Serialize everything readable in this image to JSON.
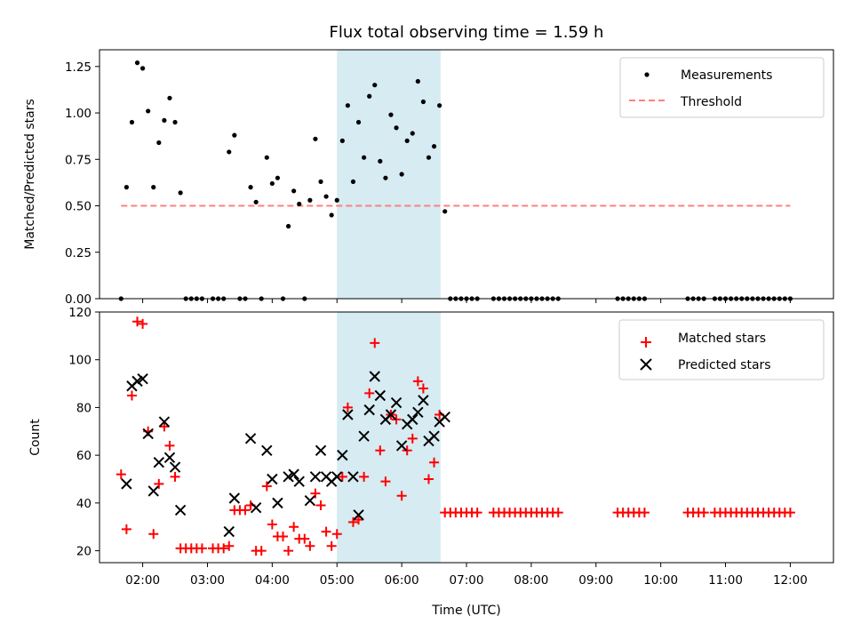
{
  "chart_data": [
    {
      "type": "scatter",
      "title": "Flux total observing time = 1.59 h",
      "xlabel": "",
      "ylabel": "Matched/Predicted stars",
      "xlim": [
        "01:20",
        "12:40"
      ],
      "ylim": [
        0,
        1.34
      ],
      "yticks": [
        0,
        0.25,
        0.5,
        0.75,
        1.0,
        1.25
      ],
      "ytick_labels": [
        "0.00",
        "0.25",
        "0.50",
        "0.75",
        "1.00",
        "1.25"
      ],
      "shaded_span": [
        "05:00",
        "06:36"
      ],
      "legend": {
        "placement": "top-right",
        "entries": [
          "Measurements",
          "Threshold"
        ]
      },
      "threshold": {
        "name": "Threshold",
        "value": 0.5,
        "x": [
          "01:40",
          "12:00"
        ],
        "color": "#ff7f7f"
      },
      "series": [
        {
          "name": "Measurements",
          "color": "#000000",
          "points": [
            [
              "01:40",
              0
            ],
            [
              "01:45",
              0.6
            ],
            [
              "01:50",
              0.95
            ],
            [
              "01:55",
              1.27
            ],
            [
              "02:00",
              1.24
            ],
            [
              "02:05",
              1.01
            ],
            [
              "02:10",
              0.6
            ],
            [
              "02:15",
              0.84
            ],
            [
              "02:20",
              0.96
            ],
            [
              "02:25",
              1.08
            ],
            [
              "02:30",
              0.95
            ],
            [
              "02:35",
              0.57
            ],
            [
              "02:40",
              0
            ],
            [
              "02:45",
              0
            ],
            [
              "02:50",
              0
            ],
            [
              "02:55",
              0
            ],
            [
              "03:05",
              0
            ],
            [
              "03:10",
              0
            ],
            [
              "03:15",
              0
            ],
            [
              "03:20",
              0.79
            ],
            [
              "03:25",
              0.88
            ],
            [
              "03:30",
              0
            ],
            [
              "03:35",
              0
            ],
            [
              "03:40",
              0.6
            ],
            [
              "03:45",
              0.52
            ],
            [
              "03:50",
              0
            ],
            [
              "03:55",
              0.76
            ],
            [
              "04:00",
              0.62
            ],
            [
              "04:05",
              0.65
            ],
            [
              "04:10",
              0
            ],
            [
              "04:15",
              0.39
            ],
            [
              "04:20",
              0.58
            ],
            [
              "04:25",
              0.51
            ],
            [
              "04:30",
              0
            ],
            [
              "04:35",
              0.53
            ],
            [
              "04:40",
              0.86
            ],
            [
              "04:45",
              0.63
            ],
            [
              "04:50",
              0.55
            ],
            [
              "04:55",
              0.45
            ],
            [
              "05:00",
              0.53
            ],
            [
              "05:05",
              0.85
            ],
            [
              "05:10",
              1.04
            ],
            [
              "05:15",
              0.63
            ],
            [
              "05:20",
              0.95
            ],
            [
              "05:25",
              0.76
            ],
            [
              "05:30",
              1.09
            ],
            [
              "05:35",
              1.15
            ],
            [
              "05:40",
              0.74
            ],
            [
              "05:45",
              0.65
            ],
            [
              "05:50",
              0.99
            ],
            [
              "05:55",
              0.92
            ],
            [
              "06:00",
              0.67
            ],
            [
              "06:05",
              0.85
            ],
            [
              "06:10",
              0.89
            ],
            [
              "06:15",
              1.17
            ],
            [
              "06:20",
              1.06
            ],
            [
              "06:25",
              0.76
            ],
            [
              "06:30",
              0.82
            ],
            [
              "06:35",
              1.04
            ],
            [
              "06:40",
              0.47
            ],
            [
              "06:45",
              0
            ],
            [
              "06:50",
              0
            ],
            [
              "06:55",
              0
            ],
            [
              "07:00",
              0
            ],
            [
              "07:05",
              0
            ],
            [
              "07:10",
              0
            ],
            [
              "07:25",
              0
            ],
            [
              "07:30",
              0
            ],
            [
              "07:35",
              0
            ],
            [
              "07:40",
              0
            ],
            [
              "07:45",
              0
            ],
            [
              "07:50",
              0
            ],
            [
              "07:55",
              0
            ],
            [
              "08:00",
              0
            ],
            [
              "08:05",
              0
            ],
            [
              "08:10",
              0
            ],
            [
              "08:15",
              0
            ],
            [
              "08:20",
              0
            ],
            [
              "08:25",
              0
            ],
            [
              "09:20",
              0
            ],
            [
              "09:25",
              0
            ],
            [
              "09:30",
              0
            ],
            [
              "09:35",
              0
            ],
            [
              "09:40",
              0
            ],
            [
              "09:45",
              0
            ],
            [
              "10:25",
              0
            ],
            [
              "10:30",
              0
            ],
            [
              "10:35",
              0
            ],
            [
              "10:40",
              0
            ],
            [
              "10:50",
              0
            ],
            [
              "10:55",
              0
            ],
            [
              "11:00",
              0
            ],
            [
              "11:05",
              0
            ],
            [
              "11:10",
              0
            ],
            [
              "11:15",
              0
            ],
            [
              "11:20",
              0
            ],
            [
              "11:25",
              0
            ],
            [
              "11:30",
              0
            ],
            [
              "11:35",
              0
            ],
            [
              "11:40",
              0
            ],
            [
              "11:45",
              0
            ],
            [
              "11:50",
              0
            ],
            [
              "11:55",
              0
            ],
            [
              "12:00",
              0
            ]
          ]
        }
      ]
    },
    {
      "type": "scatter",
      "title": "",
      "xlabel": "Time (UTC)",
      "ylabel": "Count",
      "xlim": [
        "01:20",
        "12:40"
      ],
      "xticks": [
        "02:00",
        "03:00",
        "04:00",
        "05:00",
        "06:00",
        "07:00",
        "08:00",
        "09:00",
        "10:00",
        "11:00",
        "12:00"
      ],
      "ylim": [
        15,
        120
      ],
      "yticks": [
        20,
        40,
        60,
        80,
        100,
        120
      ],
      "shaded_span": [
        "05:00",
        "06:36"
      ],
      "legend": {
        "placement": "top-right",
        "entries": [
          "Matched stars",
          "Predicted stars"
        ]
      },
      "series": [
        {
          "name": "Matched stars",
          "marker": "+",
          "color": "#ff0000",
          "points": [
            [
              "01:40",
              52
            ],
            [
              "01:45",
              29
            ],
            [
              "01:50",
              85
            ],
            [
              "01:55",
              116
            ],
            [
              "02:00",
              115
            ],
            [
              "02:05",
              70
            ],
            [
              "02:10",
              27
            ],
            [
              "02:15",
              48
            ],
            [
              "02:20",
              72
            ],
            [
              "02:25",
              64
            ],
            [
              "02:30",
              51
            ],
            [
              "02:35",
              21
            ],
            [
              "02:40",
              21
            ],
            [
              "02:45",
              21
            ],
            [
              "02:50",
              21
            ],
            [
              "02:55",
              21
            ],
            [
              "03:05",
              21
            ],
            [
              "03:10",
              21
            ],
            [
              "03:15",
              21
            ],
            [
              "03:20",
              22
            ],
            [
              "03:25",
              37
            ],
            [
              "03:30",
              37
            ],
            [
              "03:35",
              37
            ],
            [
              "03:40",
              39
            ],
            [
              "03:45",
              20
            ],
            [
              "03:50",
              20
            ],
            [
              "03:55",
              47
            ],
            [
              "04:00",
              31
            ],
            [
              "04:05",
              26
            ],
            [
              "04:10",
              26
            ],
            [
              "04:15",
              20
            ],
            [
              "04:20",
              30
            ],
            [
              "04:25",
              25
            ],
            [
              "04:30",
              25
            ],
            [
              "04:35",
              22
            ],
            [
              "04:40",
              44
            ],
            [
              "04:45",
              39
            ],
            [
              "04:50",
              28
            ],
            [
              "04:55",
              22
            ],
            [
              "05:00",
              27
            ],
            [
              "05:05",
              51
            ],
            [
              "05:10",
              80
            ],
            [
              "05:15",
              32
            ],
            [
              "05:20",
              33
            ],
            [
              "05:25",
              51
            ],
            [
              "05:30",
              86
            ],
            [
              "05:35",
              107
            ],
            [
              "05:40",
              62
            ],
            [
              "05:45",
              49
            ],
            [
              "05:50",
              77
            ],
            [
              "05:55",
              75
            ],
            [
              "06:00",
              43
            ],
            [
              "06:05",
              62
            ],
            [
              "06:10",
              67
            ],
            [
              "06:15",
              91
            ],
            [
              "06:20",
              88
            ],
            [
              "06:25",
              50
            ],
            [
              "06:30",
              57
            ],
            [
              "06:35",
              77
            ],
            [
              "06:40",
              36
            ],
            [
              "06:45",
              36
            ],
            [
              "06:50",
              36
            ],
            [
              "06:55",
              36
            ],
            [
              "07:00",
              36
            ],
            [
              "07:05",
              36
            ],
            [
              "07:10",
              36
            ],
            [
              "07:25",
              36
            ],
            [
              "07:30",
              36
            ],
            [
              "07:35",
              36
            ],
            [
              "07:40",
              36
            ],
            [
              "07:45",
              36
            ],
            [
              "07:50",
              36
            ],
            [
              "07:55",
              36
            ],
            [
              "08:00",
              36
            ],
            [
              "08:05",
              36
            ],
            [
              "08:10",
              36
            ],
            [
              "08:15",
              36
            ],
            [
              "08:20",
              36
            ],
            [
              "08:25",
              36
            ],
            [
              "09:20",
              36
            ],
            [
              "09:25",
              36
            ],
            [
              "09:30",
              36
            ],
            [
              "09:35",
              36
            ],
            [
              "09:40",
              36
            ],
            [
              "09:45",
              36
            ],
            [
              "10:25",
              36
            ],
            [
              "10:30",
              36
            ],
            [
              "10:35",
              36
            ],
            [
              "10:40",
              36
            ],
            [
              "10:50",
              36
            ],
            [
              "10:55",
              36
            ],
            [
              "11:00",
              36
            ],
            [
              "11:05",
              36
            ],
            [
              "11:10",
              36
            ],
            [
              "11:15",
              36
            ],
            [
              "11:20",
              36
            ],
            [
              "11:25",
              36
            ],
            [
              "11:30",
              36
            ],
            [
              "11:35",
              36
            ],
            [
              "11:40",
              36
            ],
            [
              "11:45",
              36
            ],
            [
              "11:50",
              36
            ],
            [
              "11:55",
              36
            ],
            [
              "12:00",
              36
            ]
          ]
        },
        {
          "name": "Predicted stars",
          "marker": "x",
          "color": "#000000",
          "points": [
            [
              "01:45",
              48
            ],
            [
              "01:50",
              89
            ],
            [
              "01:55",
              91
            ],
            [
              "02:00",
              92
            ],
            [
              "02:05",
              69
            ],
            [
              "02:10",
              45
            ],
            [
              "02:15",
              57
            ],
            [
              "02:20",
              74
            ],
            [
              "02:25",
              59
            ],
            [
              "02:30",
              55
            ],
            [
              "02:35",
              37
            ],
            [
              "03:20",
              28
            ],
            [
              "03:25",
              42
            ],
            [
              "03:40",
              67
            ],
            [
              "03:45",
              38
            ],
            [
              "03:55",
              62
            ],
            [
              "04:00",
              50
            ],
            [
              "04:05",
              40
            ],
            [
              "04:15",
              51
            ],
            [
              "04:20",
              52
            ],
            [
              "04:25",
              49
            ],
            [
              "04:35",
              41
            ],
            [
              "04:40",
              51
            ],
            [
              "04:45",
              62
            ],
            [
              "04:50",
              51
            ],
            [
              "04:55",
              49
            ],
            [
              "05:00",
              51
            ],
            [
              "05:05",
              60
            ],
            [
              "05:10",
              77
            ],
            [
              "05:15",
              51
            ],
            [
              "05:20",
              35
            ],
            [
              "05:25",
              68
            ],
            [
              "05:30",
              79
            ],
            [
              "05:35",
              93
            ],
            [
              "05:40",
              85
            ],
            [
              "05:45",
              75
            ],
            [
              "05:50",
              77
            ],
            [
              "05:55",
              82
            ],
            [
              "06:00",
              64
            ],
            [
              "06:05",
              73
            ],
            [
              "06:10",
              75
            ],
            [
              "06:15",
              78
            ],
            [
              "06:20",
              83
            ],
            [
              "06:25",
              66
            ],
            [
              "06:30",
              68
            ],
            [
              "06:35",
              74
            ],
            [
              "06:40",
              76
            ]
          ]
        }
      ]
    }
  ]
}
